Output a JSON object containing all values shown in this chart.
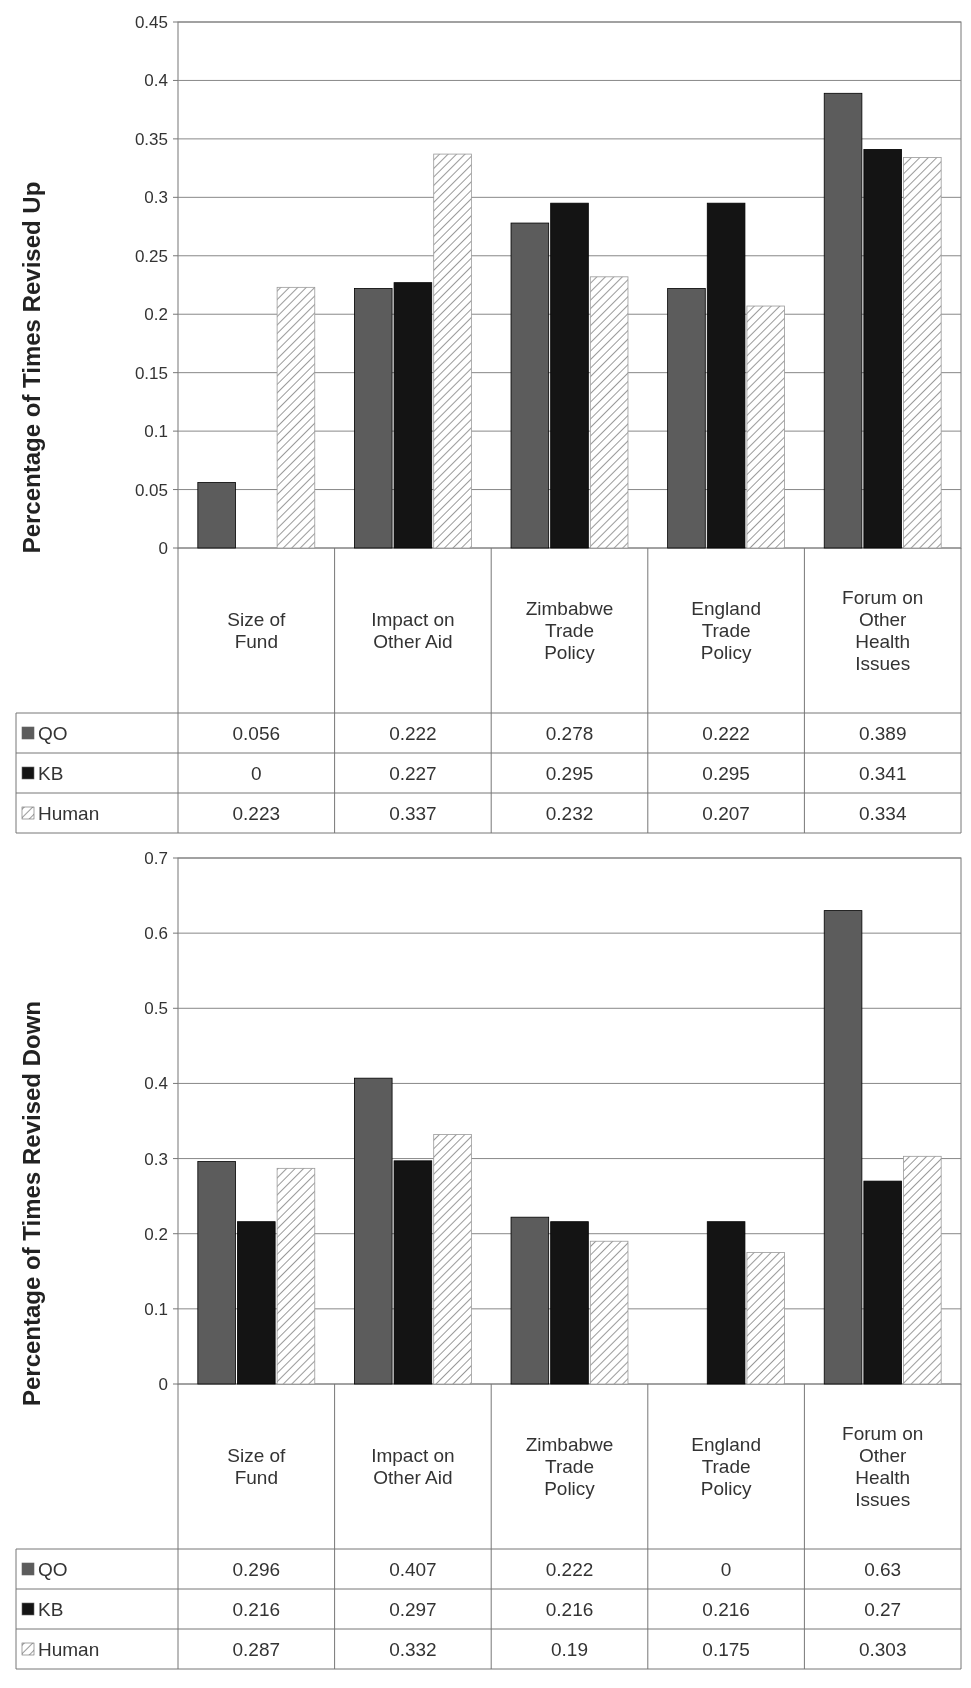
{
  "chart_data": [
    {
      "type": "bar",
      "ylabel": "Percentage of Times Revised Up",
      "categories": [
        "Size of Fund",
        "Impact on Other Aid",
        "Zimbabwe Trade Policy",
        "England Trade Policy",
        "Forum on Other Health Issues"
      ],
      "series": [
        {
          "name": "QO",
          "color": "#5c5c5c",
          "values": [
            0.056,
            0.222,
            0.278,
            0.222,
            0.389
          ]
        },
        {
          "name": "KB",
          "color": "#141414",
          "values": [
            0,
            0.227,
            0.295,
            0.295,
            0.341
          ]
        },
        {
          "name": "Human",
          "color": "#9a9a9a",
          "values": [
            0.223,
            0.337,
            0.232,
            0.207,
            0.334
          ]
        }
      ],
      "ylim": [
        0,
        0.45
      ],
      "yticks": [
        0,
        0.05,
        0.1,
        0.15,
        0.2,
        0.25,
        0.3,
        0.35,
        0.4,
        0.45
      ],
      "grid": "y",
      "data_labels": true,
      "legend": "bottom left"
    },
    {
      "type": "bar",
      "ylabel": "Percentage of Times Revised Down",
      "categories": [
        "Size of Fund",
        "Impact on Other Aid",
        "Zimbabwe Trade Policy",
        "England Trade Policy",
        "Forum on Other Health Issues"
      ],
      "series": [
        {
          "name": "QO",
          "color": "#5c5c5c",
          "values": [
            0.296,
            0.407,
            0.222,
            0,
            0.63
          ]
        },
        {
          "name": "KB",
          "color": "#141414",
          "values": [
            0.216,
            0.297,
            0.216,
            0.216,
            0.27
          ]
        },
        {
          "name": "Human",
          "color": "#9a9a9a",
          "values": [
            0.287,
            0.332,
            0.19,
            0.175,
            0.303
          ]
        }
      ],
      "ylim": [
        0,
        0.7
      ],
      "yticks": [
        0,
        0.1,
        0.2,
        0.3,
        0.4,
        0.5,
        0.6,
        0.7
      ],
      "grid": "y",
      "data_labels": true,
      "legend": "bottom left"
    }
  ]
}
